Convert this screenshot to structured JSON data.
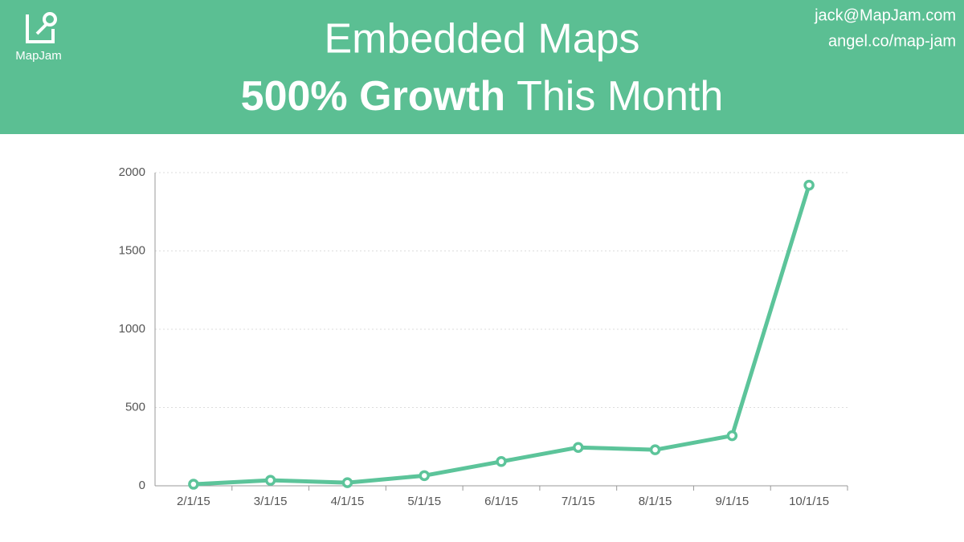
{
  "header": {
    "logo_text": "MapJam",
    "title_line1": "Embedded Maps",
    "title_bold": "500% Growth",
    "title_rest": "This Month",
    "email": "jack@MapJam.com",
    "website": "angel.co/map-jam"
  },
  "chart_data": {
    "type": "line",
    "categories": [
      "2/1/15",
      "3/1/15",
      "4/1/15",
      "5/1/15",
      "6/1/15",
      "7/1/15",
      "8/1/15",
      "9/1/15",
      "10/1/15"
    ],
    "values": [
      10,
      35,
      20,
      65,
      155,
      245,
      230,
      320,
      1920
    ],
    "color": "#5cc49a",
    "ylim": [
      0,
      2000
    ],
    "yticks": [
      0,
      500,
      1000,
      1500,
      2000
    ],
    "grid": true
  }
}
